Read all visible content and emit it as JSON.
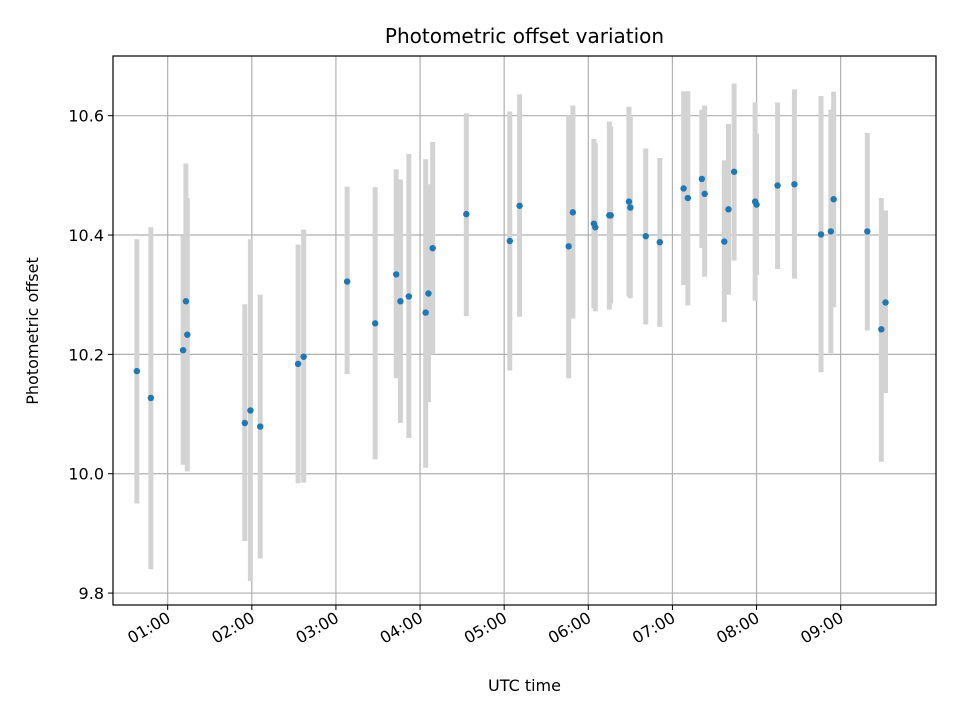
{
  "chart_data": {
    "type": "scatter",
    "title": "Photometric offset variation",
    "xlabel": "UTC time",
    "ylabel": "Photometric offset",
    "xlim": [
      "00:21",
      "10:08"
    ],
    "ylim": [
      9.78,
      10.7
    ],
    "grid": true,
    "point_color": "#1f77b4",
    "errorbar_color": "#d3d3d3",
    "x_ticks": [
      "01:00",
      "02:00",
      "03:00",
      "04:00",
      "05:00",
      "06:00",
      "07:00",
      "08:00",
      "09:00"
    ],
    "y_ticks": [
      "9.8",
      "10.0",
      "10.2",
      "10.4",
      "10.6"
    ],
    "series": [
      {
        "points": [
          {
            "t": "00:38",
            "y": 10.172,
            "lo": 9.95,
            "hi": 10.393
          },
          {
            "t": "00:48",
            "y": 10.127,
            "lo": 9.84,
            "hi": 10.413
          },
          {
            "t": "01:11",
            "y": 10.207,
            "lo": 10.015,
            "hi": 10.399
          },
          {
            "t": "01:13",
            "y": 10.289,
            "lo": 10.055,
            "hi": 10.52
          },
          {
            "t": "01:14",
            "y": 10.233,
            "lo": 10.004,
            "hi": 10.462
          },
          {
            "t": "01:55",
            "y": 10.085,
            "lo": 9.887,
            "hi": 10.284
          },
          {
            "t": "01:59",
            "y": 10.106,
            "lo": 9.82,
            "hi": 10.393
          },
          {
            "t": "02:06",
            "y": 10.079,
            "lo": 9.858,
            "hi": 10.3
          },
          {
            "t": "02:33",
            "y": 10.184,
            "lo": 9.984,
            "hi": 10.384
          },
          {
            "t": "02:37",
            "y": 10.196,
            "lo": 9.985,
            "hi": 10.409
          },
          {
            "t": "03:08",
            "y": 10.322,
            "lo": 10.167,
            "hi": 10.481
          },
          {
            "t": "03:28",
            "y": 10.252,
            "lo": 10.024,
            "hi": 10.48
          },
          {
            "t": "03:43",
            "y": 10.334,
            "lo": 10.16,
            "hi": 10.51
          },
          {
            "t": "03:46",
            "y": 10.289,
            "lo": 10.085,
            "hi": 10.493
          },
          {
            "t": "03:52",
            "y": 10.297,
            "lo": 10.06,
            "hi": 10.536
          },
          {
            "t": "04:04",
            "y": 10.27,
            "lo": 10.01,
            "hi": 10.527
          },
          {
            "t": "04:06",
            "y": 10.302,
            "lo": 10.12,
            "hi": 10.485
          },
          {
            "t": "04:09",
            "y": 10.378,
            "lo": 10.2,
            "hi": 10.556
          },
          {
            "t": "04:33",
            "y": 10.435,
            "lo": 10.264,
            "hi": 10.604
          },
          {
            "t": "05:04",
            "y": 10.39,
            "lo": 10.173,
            "hi": 10.607
          },
          {
            "t": "05:11",
            "y": 10.449,
            "lo": 10.263,
            "hi": 10.636
          },
          {
            "t": "05:46",
            "y": 10.381,
            "lo": 10.16,
            "hi": 10.6
          },
          {
            "t": "05:49",
            "y": 10.438,
            "lo": 10.26,
            "hi": 10.617
          },
          {
            "t": "06:04",
            "y": 10.419,
            "lo": 10.277,
            "hi": 10.561
          },
          {
            "t": "06:05",
            "y": 10.413,
            "lo": 10.272,
            "hi": 10.554
          },
          {
            "t": "06:15",
            "y": 10.433,
            "lo": 10.275,
            "hi": 10.59
          },
          {
            "t": "06:16",
            "y": 10.433,
            "lo": 10.285,
            "hi": 10.582
          },
          {
            "t": "06:29",
            "y": 10.456,
            "lo": 10.297,
            "hi": 10.615
          },
          {
            "t": "06:30",
            "y": 10.446,
            "lo": 10.294,
            "hi": 10.598
          },
          {
            "t": "06:41",
            "y": 10.398,
            "lo": 10.25,
            "hi": 10.545
          },
          {
            "t": "06:51",
            "y": 10.388,
            "lo": 10.246,
            "hi": 10.529
          },
          {
            "t": "07:08",
            "y": 10.478,
            "lo": 10.316,
            "hi": 10.641
          },
          {
            "t": "07:11",
            "y": 10.462,
            "lo": 10.282,
            "hi": 10.641
          },
          {
            "t": "07:21",
            "y": 10.494,
            "lo": 10.378,
            "hi": 10.61
          },
          {
            "t": "07:23",
            "y": 10.469,
            "lo": 10.33,
            "hi": 10.617
          },
          {
            "t": "07:37",
            "y": 10.389,
            "lo": 10.254,
            "hi": 10.525
          },
          {
            "t": "07:40",
            "y": 10.443,
            "lo": 10.3,
            "hi": 10.586
          },
          {
            "t": "07:44",
            "y": 10.506,
            "lo": 10.357,
            "hi": 10.654
          },
          {
            "t": "07:59",
            "y": 10.456,
            "lo": 10.29,
            "hi": 10.622
          },
          {
            "t": "08:00",
            "y": 10.451,
            "lo": 10.333,
            "hi": 10.57
          },
          {
            "t": "08:15",
            "y": 10.483,
            "lo": 10.343,
            "hi": 10.622
          },
          {
            "t": "08:27",
            "y": 10.485,
            "lo": 10.327,
            "hi": 10.644
          },
          {
            "t": "08:46",
            "y": 10.401,
            "lo": 10.17,
            "hi": 10.633
          },
          {
            "t": "08:53",
            "y": 10.406,
            "lo": 10.202,
            "hi": 10.61
          },
          {
            "t": "08:55",
            "y": 10.46,
            "lo": 10.279,
            "hi": 10.64
          },
          {
            "t": "09:19",
            "y": 10.406,
            "lo": 10.24,
            "hi": 10.571
          },
          {
            "t": "09:29",
            "y": 10.242,
            "lo": 10.02,
            "hi": 10.462
          },
          {
            "t": "09:32",
            "y": 10.287,
            "lo": 10.135,
            "hi": 10.441
          }
        ]
      }
    ]
  }
}
